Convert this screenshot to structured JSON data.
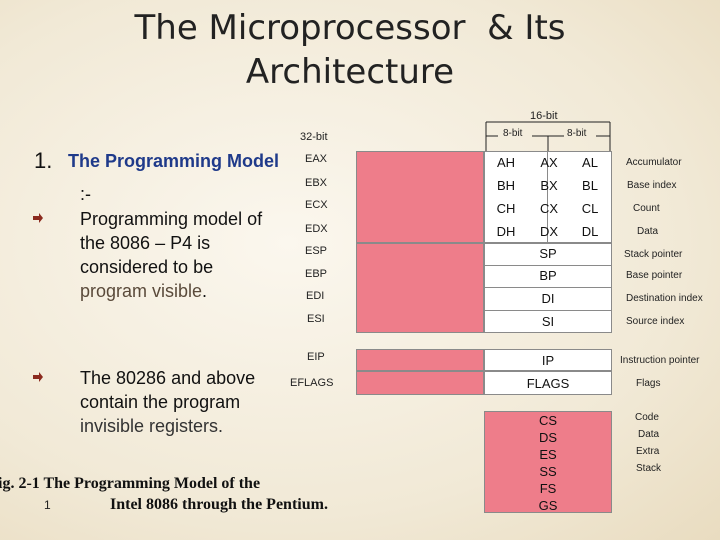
{
  "slide": {
    "title_line1": "The Microprocessor  & Its",
    "title_line2": "Architecture",
    "item_number": "1.",
    "heading": "The Programming Model",
    "colon": ":-",
    "para1": [
      "Programming model of",
      "the 8086 – P4 is",
      "considered  to be"
    ],
    "para1_last_a": "program visible",
    "para1_last_b": ".",
    "para2": [
      "The 80286 and above",
      "contain the program",
      "invisible registers."
    ],
    "caption_line1": "ig. 2-1 The Programming Model of the",
    "caption_line2": "Intel 8086 through the Pentium.",
    "page_number": "1"
  },
  "diagram": {
    "label_16bit": "16-bit",
    "label_8bit_left": "8-bit",
    "label_8bit_right": "8-bit",
    "label_32bit": "32-bit",
    "general_rows": [
      {
        "r32": "EAX",
        "hi": "AH",
        "mid": "AX",
        "lo": "AL",
        "desc": "Accumulator"
      },
      {
        "r32": "EBX",
        "hi": "BH",
        "mid": "BX",
        "lo": "BL",
        "desc": "Base index"
      },
      {
        "r32": "ECX",
        "hi": "CH",
        "mid": "CX",
        "lo": "CL",
        "desc": "Count"
      },
      {
        "r32": "EDX",
        "hi": "DH",
        "mid": "DX",
        "lo": "DL",
        "desc": "Data"
      }
    ],
    "pointer_rows": [
      {
        "r32": "ESP",
        "r16": "SP",
        "desc": "Stack pointer"
      },
      {
        "r32": "EBP",
        "r16": "BP",
        "desc": "Base pointer"
      },
      {
        "r32": "EDI",
        "r16": "DI",
        "desc": "Destination index"
      },
      {
        "r32": "ESI",
        "r16": "SI",
        "desc": "Source index"
      }
    ],
    "eip": {
      "r32": "EIP",
      "r16": "IP",
      "desc": "Instruction pointer"
    },
    "eflags": {
      "r32": "EFLAGS",
      "r16": "FLAGS",
      "desc": "Flags"
    },
    "segments": [
      {
        "name": "CS",
        "desc": "Code"
      },
      {
        "name": "DS",
        "desc": "Data"
      },
      {
        "name": "ES",
        "desc": "Extra"
      },
      {
        "name": "SS",
        "desc": "Stack"
      },
      {
        "name": "FS",
        "desc": ""
      },
      {
        "name": "GS",
        "desc": ""
      }
    ]
  }
}
